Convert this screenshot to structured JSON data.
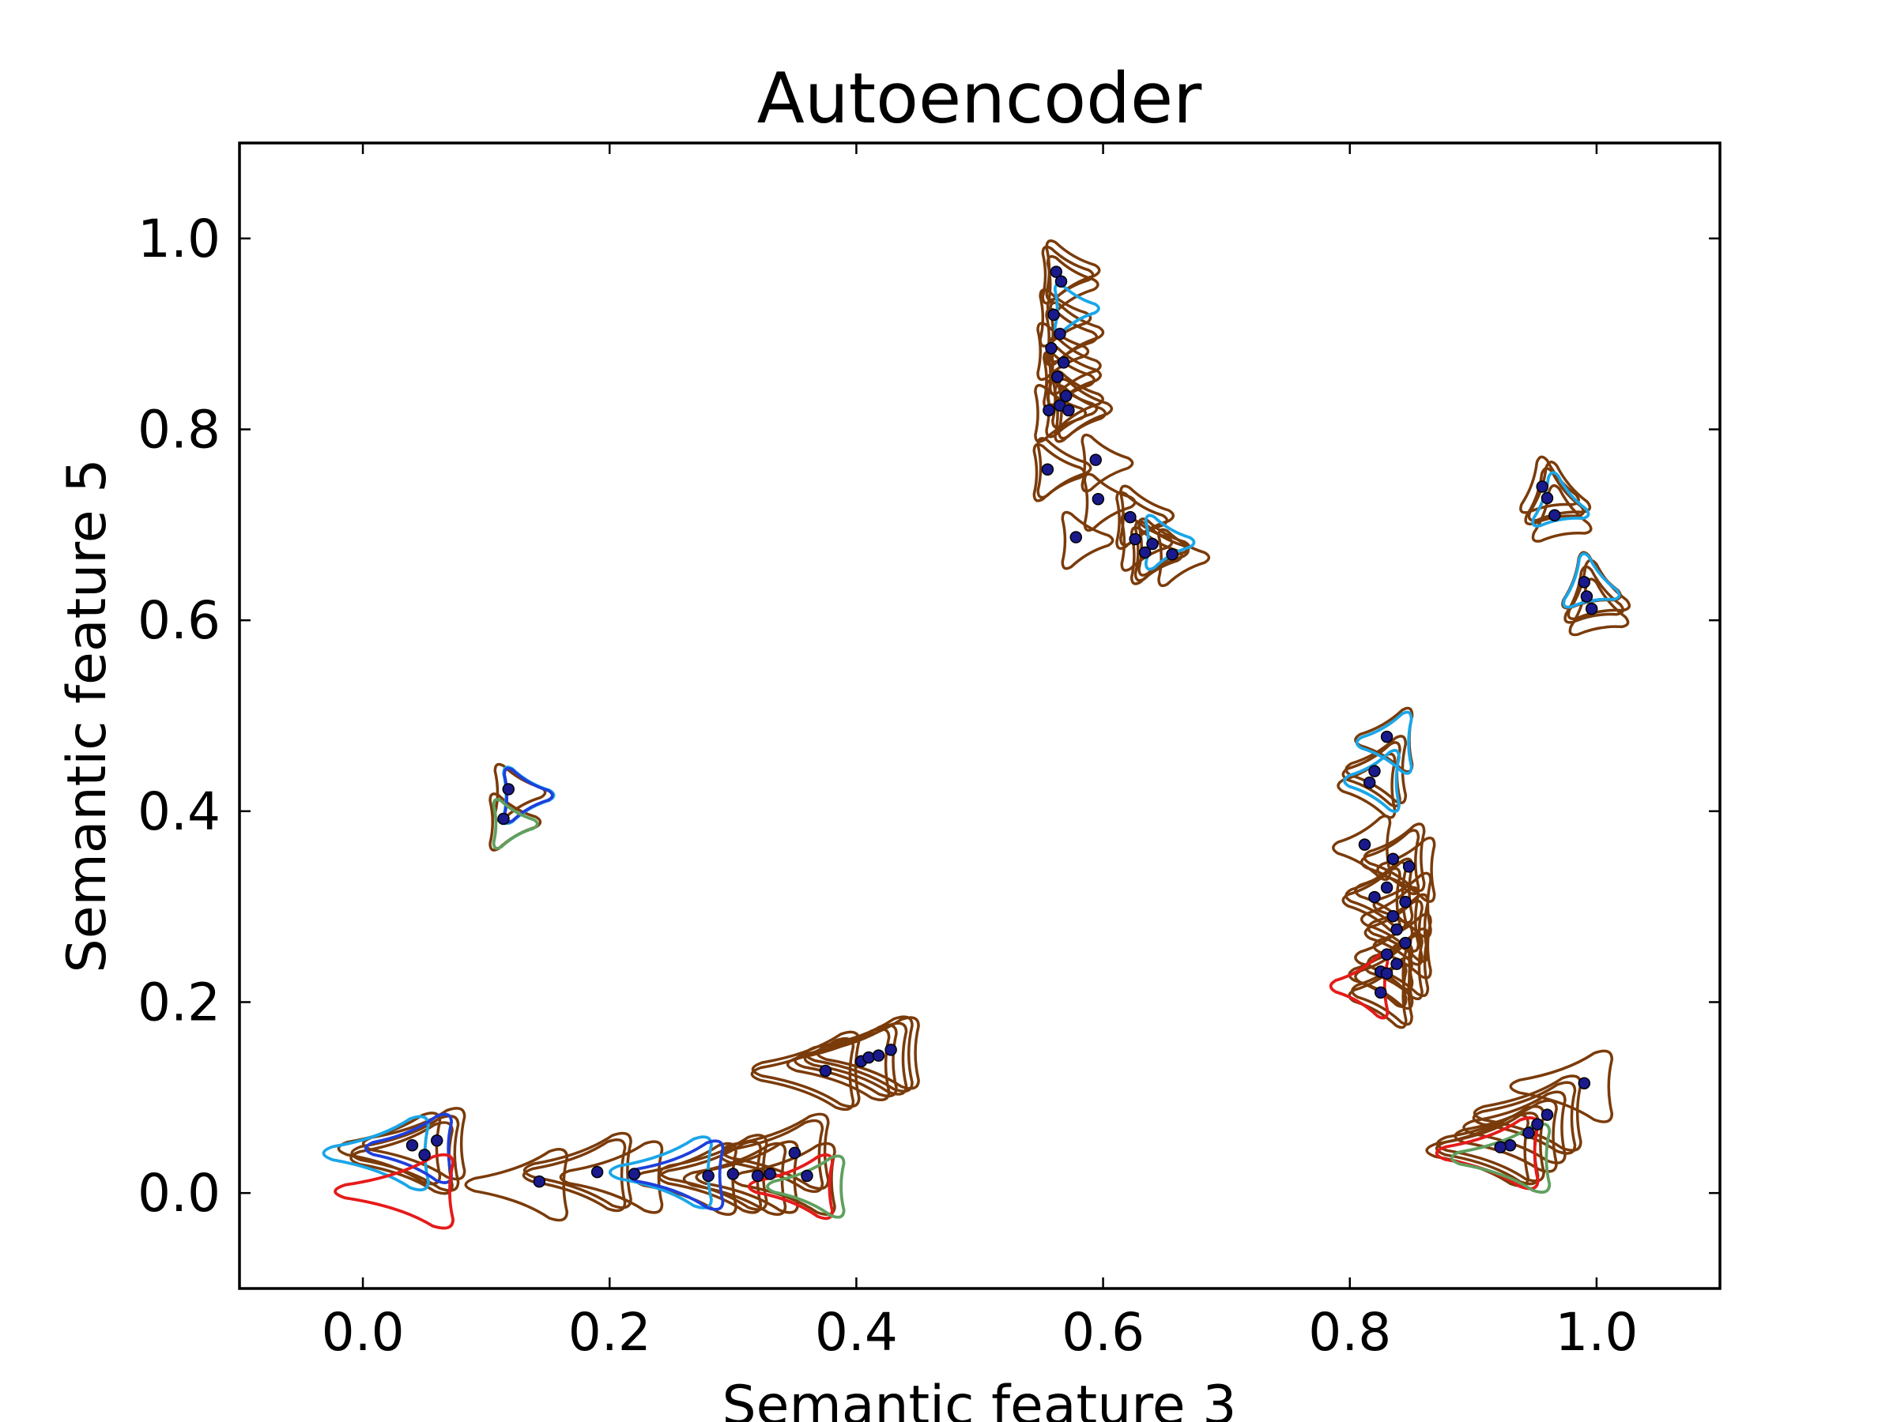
{
  "chart_data": {
    "type": "scatter",
    "title": "Autoencoder",
    "xlabel": "Semantic feature 3",
    "ylabel": "Semantic feature 5",
    "xlim": [
      -0.1,
      1.1
    ],
    "ylim": [
      -0.1,
      1.1
    ],
    "x_ticks": [
      "0.0",
      "0.2",
      "0.4",
      "0.6",
      "0.8",
      "1.0"
    ],
    "y_ticks": [
      "0.0",
      "0.2",
      "0.4",
      "0.6",
      "0.8",
      "1.0"
    ],
    "grid": false,
    "legend": "none",
    "colors": {
      "point": "#1a1a8c",
      "contour_main": "#7a3b0a",
      "contour_cyan": "#1aa6e8",
      "contour_blue": "#1f3fdb",
      "contour_red": "#e61a1a",
      "contour_green": "#5fa05f"
    },
    "series": [
      {
        "marker": "dot",
        "points": [
          [
            0.562,
            0.965
          ],
          [
            0.566,
            0.955
          ],
          [
            0.56,
            0.92
          ],
          [
            0.565,
            0.9
          ],
          [
            0.558,
            0.885
          ],
          [
            0.568,
            0.87
          ],
          [
            0.563,
            0.855
          ],
          [
            0.57,
            0.835
          ],
          [
            0.565,
            0.825
          ],
          [
            0.572,
            0.82
          ],
          [
            0.556,
            0.82
          ],
          [
            0.594,
            0.768
          ],
          [
            0.555,
            0.758
          ],
          [
            0.596,
            0.727
          ],
          [
            0.578,
            0.687
          ],
          [
            0.622,
            0.708
          ],
          [
            0.626,
            0.685
          ],
          [
            0.64,
            0.68
          ],
          [
            0.634,
            0.671
          ],
          [
            0.656,
            0.669
          ],
          [
            0.956,
            0.74
          ],
          [
            0.96,
            0.728
          ],
          [
            0.966,
            0.71
          ],
          [
            0.99,
            0.64
          ],
          [
            0.992,
            0.625
          ],
          [
            0.996,
            0.612
          ],
          [
            0.83,
            0.478
          ],
          [
            0.82,
            0.442
          ],
          [
            0.816,
            0.43
          ],
          [
            0.812,
            0.365
          ],
          [
            0.835,
            0.35
          ],
          [
            0.848,
            0.342
          ],
          [
            0.83,
            0.32
          ],
          [
            0.82,
            0.31
          ],
          [
            0.845,
            0.305
          ],
          [
            0.835,
            0.29
          ],
          [
            0.838,
            0.276
          ],
          [
            0.845,
            0.262
          ],
          [
            0.83,
            0.25
          ],
          [
            0.838,
            0.24
          ],
          [
            0.825,
            0.232
          ],
          [
            0.83,
            0.23
          ],
          [
            0.825,
            0.21
          ],
          [
            0.118,
            0.423
          ],
          [
            0.114,
            0.392
          ],
          [
            0.375,
            0.128
          ],
          [
            0.404,
            0.138
          ],
          [
            0.41,
            0.142
          ],
          [
            0.418,
            0.144
          ],
          [
            0.428,
            0.15
          ],
          [
            0.99,
            0.115
          ],
          [
            0.96,
            0.082
          ],
          [
            0.952,
            0.072
          ],
          [
            0.945,
            0.063
          ],
          [
            0.93,
            0.05
          ],
          [
            0.922,
            0.048
          ],
          [
            0.143,
            0.012
          ],
          [
            0.19,
            0.022
          ],
          [
            0.22,
            0.02
          ],
          [
            0.28,
            0.018
          ],
          [
            0.3,
            0.02
          ],
          [
            0.32,
            0.018
          ],
          [
            0.33,
            0.02
          ],
          [
            0.35,
            0.042
          ],
          [
            0.36,
            0.018
          ],
          [
            0.04,
            0.05
          ],
          [
            0.05,
            0.04
          ],
          [
            0.06,
            0.055
          ]
        ]
      }
    ]
  }
}
